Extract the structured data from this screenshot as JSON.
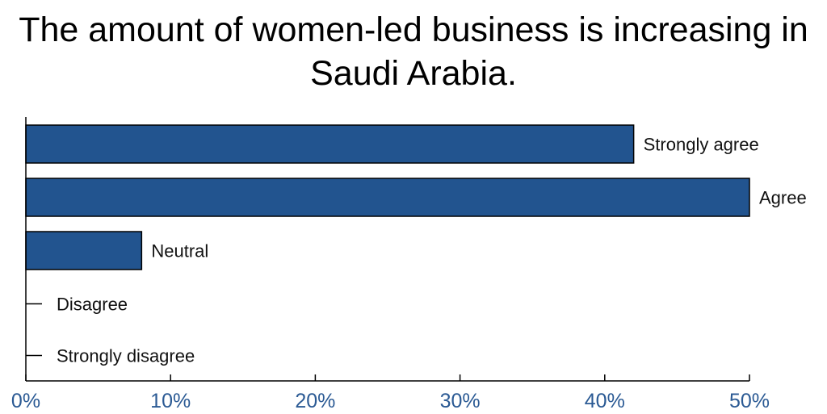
{
  "chart_data": {
    "type": "bar",
    "orientation": "horizontal",
    "title": "The amount of women-led business is increasing in Saudi Arabia.",
    "categories": [
      "Strongly agree",
      "Agree",
      "Neutral",
      "Disagree",
      "Strongly disagree"
    ],
    "values": [
      42,
      50,
      8,
      0,
      0
    ],
    "xlim": [
      0,
      50
    ],
    "xticks": [
      "0%",
      "10%",
      "20%",
      "30%",
      "40%",
      "50%"
    ],
    "xlabel": "",
    "ylabel": "",
    "grid": false,
    "legend": "none"
  },
  "colors": {
    "bar": "#22548f",
    "tick_label": "#2b5a94",
    "axis": "#000000"
  }
}
